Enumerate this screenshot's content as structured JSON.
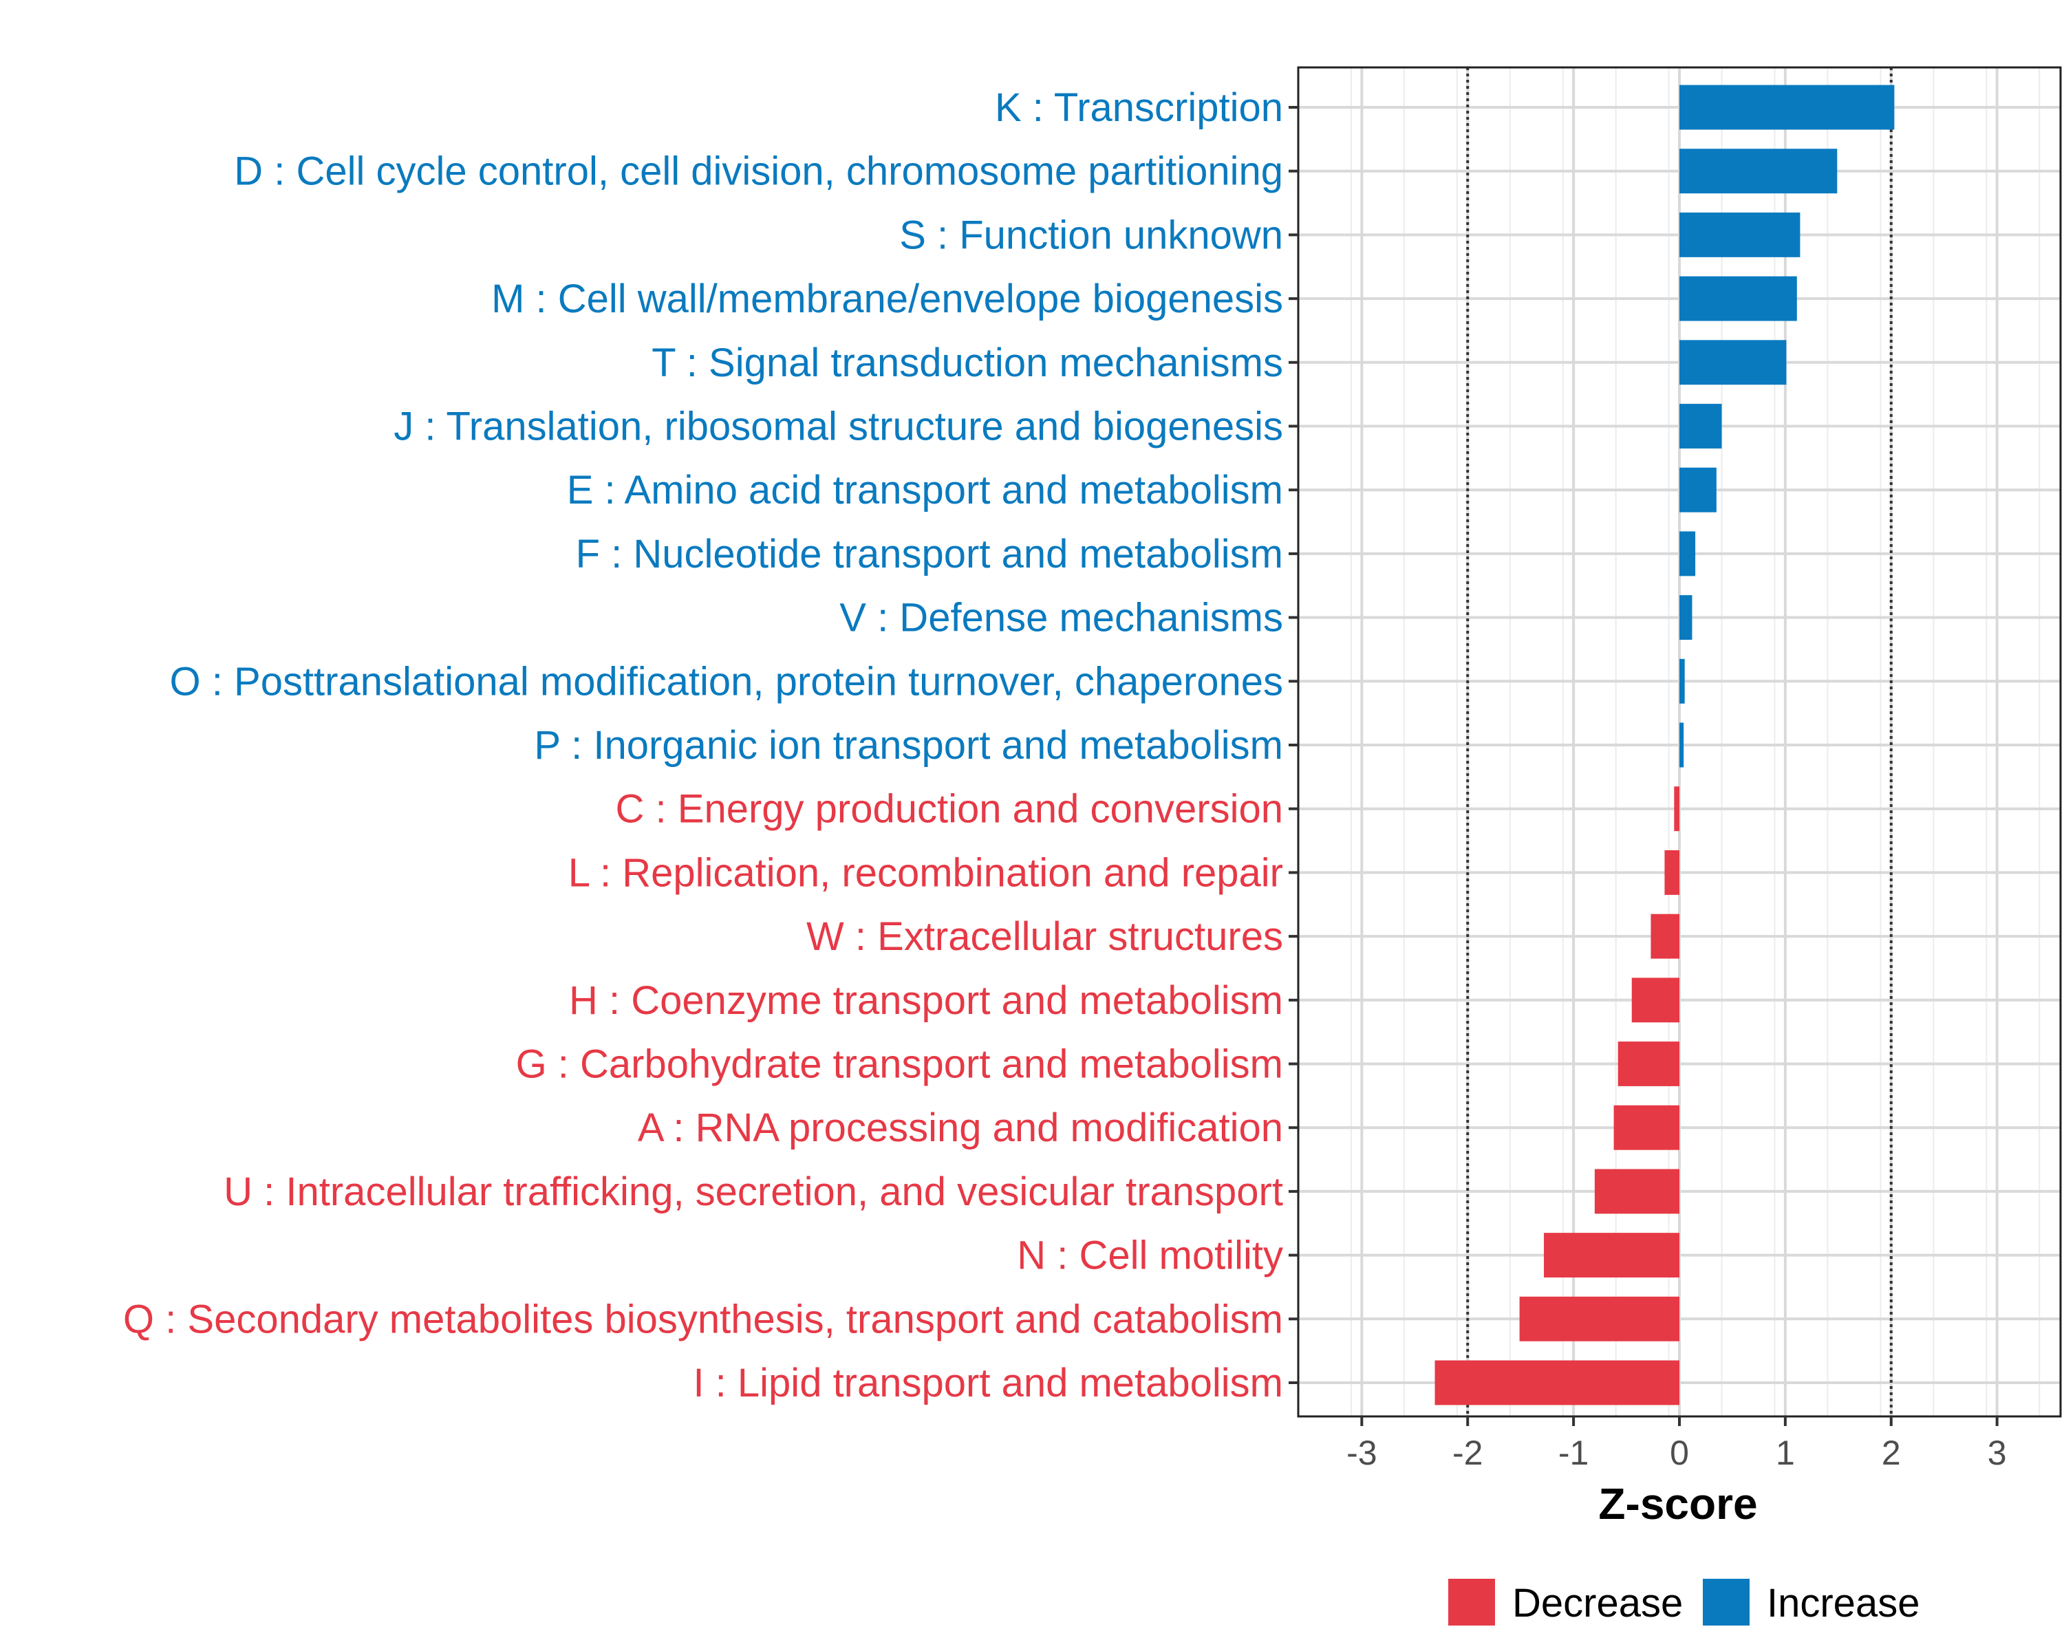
{
  "chart_data": {
    "type": "bar",
    "orientation": "horizontal",
    "title": "",
    "xlabel": "Z-score",
    "ylabel": "",
    "xlim": [
      -3.6,
      3.6
    ],
    "xticks": [
      -3,
      -2,
      -1,
      0,
      1,
      2,
      3
    ],
    "xtick_labels": [
      "-3",
      "-2",
      "-1",
      "0",
      "1",
      "2",
      "3"
    ],
    "reference_lines": [
      -2,
      2
    ],
    "grid": true,
    "categories": [
      "K : Transcription",
      "D : Cell cycle control, cell division, chromosome partitioning",
      "S : Function unknown",
      "M : Cell wall/membrane/envelope biogenesis",
      "T : Signal transduction mechanisms",
      "J : Translation, ribosomal structure and biogenesis",
      "E : Amino acid transport and metabolism",
      "F : Nucleotide transport and metabolism",
      "V : Defense mechanisms",
      "O : Posttranslational modification, protein turnover, chaperones",
      "P : Inorganic ion transport and metabolism",
      "C : Energy production and conversion",
      "L : Replication, recombination and repair",
      "W : Extracellular structures",
      "H : Coenzyme transport and metabolism",
      "G : Carbohydrate transport and metabolism",
      "A : RNA processing and modification",
      "U : Intracellular trafficking, secretion, and vesicular transport",
      "N : Cell motility",
      "Q : Secondary metabolites biosynthesis, transport and catabolism",
      "I : Lipid transport and metabolism"
    ],
    "values": [
      2.03,
      1.49,
      1.14,
      1.11,
      1.01,
      0.4,
      0.35,
      0.15,
      0.12,
      0.05,
      0.04,
      -0.05,
      -0.14,
      -0.27,
      -0.45,
      -0.58,
      -0.62,
      -0.8,
      -1.28,
      -1.51,
      -2.31
    ],
    "groups": [
      "Increase",
      "Increase",
      "Increase",
      "Increase",
      "Increase",
      "Increase",
      "Increase",
      "Increase",
      "Increase",
      "Increase",
      "Increase",
      "Decrease",
      "Decrease",
      "Decrease",
      "Decrease",
      "Decrease",
      "Decrease",
      "Decrease",
      "Decrease",
      "Decrease",
      "Decrease"
    ],
    "legend": {
      "position": "bottom",
      "entries": [
        {
          "name": "Decrease",
          "color": "#e63946"
        },
        {
          "name": "Increase",
          "color": "#0a7abf"
        }
      ]
    },
    "colors": {
      "Decrease": "#e63946",
      "Increase": "#0a7abf"
    }
  }
}
